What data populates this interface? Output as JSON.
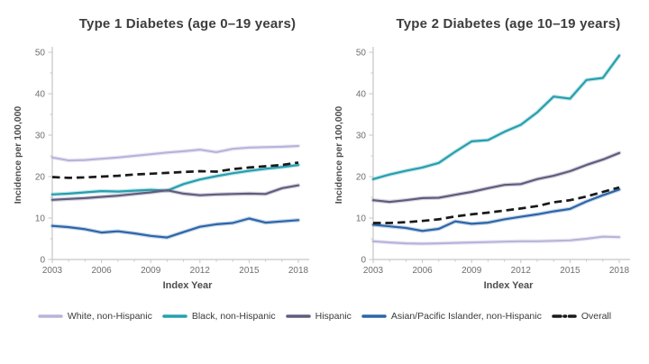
{
  "legend": [
    {
      "label": "White, non-Hispanic",
      "color": "#b7b4da",
      "dashed": false
    },
    {
      "label": "Black, non-Hispanic",
      "color": "#259fae",
      "dashed": false
    },
    {
      "label": "Hispanic",
      "color": "#605c7e",
      "dashed": false
    },
    {
      "label": "Asian/Pacific Islander, non-Hispanic",
      "color": "#2c65a9",
      "dashed": false
    },
    {
      "label": "Overall",
      "color": "#191919",
      "dashed": true
    }
  ],
  "chart_data": [
    {
      "type": "line",
      "title": "Type 1 Diabetes (age 0–19 years)",
      "xlabel": "Index Year",
      "ylabel": "Incidence per 100,000",
      "ylim": [
        0,
        50
      ],
      "y_ticks": [
        0,
        10,
        20,
        30,
        40,
        50
      ],
      "x_tick_labels": [
        2003,
        2006,
        2009,
        2012,
        2015,
        2018
      ],
      "grid": false,
      "x": [
        2003,
        2004,
        2005,
        2006,
        2007,
        2008,
        2009,
        2010,
        2011,
        2012,
        2013,
        2014,
        2015,
        2016,
        2017,
        2018
      ],
      "series": [
        {
          "name": "White, non-Hispanic",
          "color": "#b7b4da",
          "dashed": false,
          "values": [
            24.6,
            23.9,
            24.0,
            24.3,
            24.6,
            25.0,
            25.4,
            25.8,
            26.1,
            26.5,
            25.9,
            26.7,
            27.0,
            27.1,
            27.2,
            27.4
          ]
        },
        {
          "name": "Black, non-Hispanic",
          "color": "#259fae",
          "dashed": false,
          "values": [
            15.7,
            15.9,
            16.2,
            16.5,
            16.4,
            16.6,
            16.8,
            16.6,
            18.2,
            19.3,
            20.1,
            20.8,
            21.4,
            21.9,
            22.3,
            22.8
          ]
        },
        {
          "name": "Hispanic",
          "color": "#605c7e",
          "dashed": false,
          "values": [
            14.4,
            14.6,
            14.8,
            15.1,
            15.4,
            15.8,
            16.2,
            16.7,
            15.9,
            15.5,
            15.7,
            15.8,
            15.9,
            15.8,
            17.2,
            17.9
          ]
        },
        {
          "name": "Asian/Pacific Islander, non-Hispanic",
          "color": "#2c65a9",
          "dashed": false,
          "values": [
            8.1,
            7.8,
            7.3,
            6.5,
            6.8,
            6.3,
            5.7,
            5.3,
            6.6,
            7.9,
            8.5,
            8.8,
            9.9,
            8.9,
            9.2,
            9.5
          ]
        },
        {
          "name": "Overall",
          "color": "#191919",
          "dashed": true,
          "values": [
            19.9,
            19.7,
            19.8,
            20.0,
            20.2,
            20.5,
            20.7,
            20.9,
            21.1,
            21.3,
            21.2,
            21.8,
            22.2,
            22.5,
            22.8,
            23.4
          ]
        }
      ]
    },
    {
      "type": "line",
      "title": "Type 2 Diabetes (age 10–19 years)",
      "xlabel": "Index Year",
      "ylabel": "Incidence per 100,000",
      "ylim": [
        0,
        50
      ],
      "y_ticks": [
        0,
        10,
        20,
        30,
        40,
        50
      ],
      "x_tick_labels": [
        2003,
        2006,
        2009,
        2012,
        2015,
        2018
      ],
      "grid": false,
      "x": [
        2003,
        2004,
        2005,
        2006,
        2007,
        2008,
        2009,
        2010,
        2011,
        2012,
        2013,
        2014,
        2015,
        2016,
        2017,
        2018
      ],
      "series": [
        {
          "name": "White, non-Hispanic",
          "color": "#b7b4da",
          "dashed": false,
          "values": [
            4.4,
            4.1,
            3.9,
            3.8,
            3.9,
            4.0,
            4.1,
            4.2,
            4.3,
            4.4,
            4.4,
            4.5,
            4.6,
            5.0,
            5.5,
            5.4
          ]
        },
        {
          "name": "Black, non-Hispanic",
          "color": "#259fae",
          "dashed": false,
          "values": [
            19.4,
            20.5,
            21.4,
            22.2,
            23.3,
            26.0,
            28.5,
            28.8,
            30.8,
            32.5,
            35.5,
            39.3,
            38.8,
            43.3,
            43.8,
            49.2
          ]
        },
        {
          "name": "Hispanic",
          "color": "#605c7e",
          "dashed": false,
          "values": [
            14.3,
            13.9,
            14.3,
            14.8,
            14.9,
            15.6,
            16.3,
            17.2,
            18.0,
            18.2,
            19.4,
            20.2,
            21.3,
            22.8,
            24.1,
            25.7
          ]
        },
        {
          "name": "Asian/Pacific Islander, non-Hispanic",
          "color": "#2c65a9",
          "dashed": false,
          "values": [
            8.4,
            8.0,
            7.6,
            6.9,
            7.4,
            9.2,
            8.6,
            8.9,
            9.7,
            10.3,
            10.9,
            11.6,
            12.2,
            14.0,
            15.5,
            16.9
          ]
        },
        {
          "name": "Overall",
          "color": "#191919",
          "dashed": true,
          "values": [
            8.8,
            8.8,
            9.0,
            9.3,
            9.7,
            10.4,
            10.9,
            11.3,
            11.8,
            12.3,
            12.9,
            13.8,
            14.3,
            15.2,
            16.3,
            17.4
          ]
        }
      ]
    }
  ]
}
